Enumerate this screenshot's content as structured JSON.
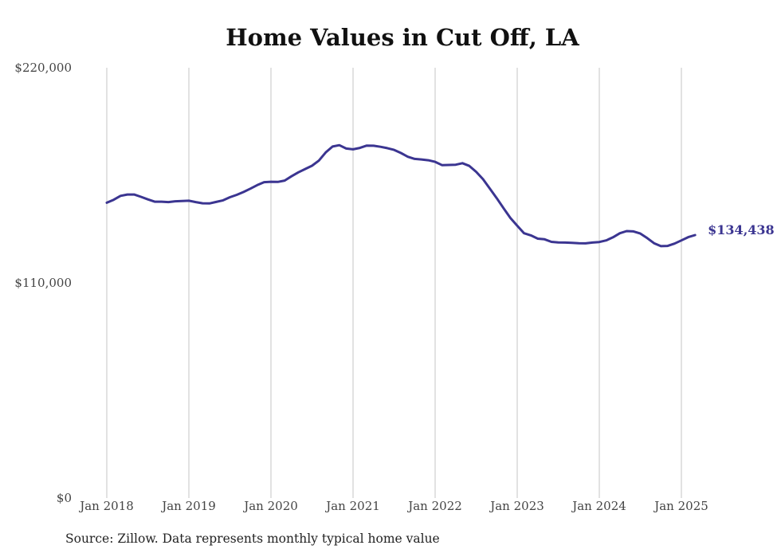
{
  "chart_data": {
    "type": "line",
    "title": "Home Values in Cut Off, LA",
    "xlabel": "",
    "ylabel": "",
    "x_ticks": [
      "Jan 2018",
      "Jan 2019",
      "Jan 2020",
      "Jan 2021",
      "Jan 2022",
      "Jan 2023",
      "Jan 2024",
      "Jan 2025"
    ],
    "y_ticks": [
      "$0",
      "$110,000",
      "$220,000"
    ],
    "ylim": [
      0,
      220000
    ],
    "xlim": [
      "2018-01",
      "2025-03"
    ],
    "grid": "vertical",
    "line_color": "#3b3591",
    "end_label": "$134,438",
    "series": [
      {
        "x": [
          "2018-01",
          "2018-02",
          "2018-03",
          "2018-04",
          "2018-05",
          "2018-06",
          "2018-07",
          "2018-08",
          "2018-09",
          "2018-10",
          "2018-11",
          "2018-12",
          "2019-01",
          "2019-02",
          "2019-03",
          "2019-04",
          "2019-05",
          "2019-06",
          "2019-07",
          "2019-08",
          "2019-09",
          "2019-10",
          "2019-11",
          "2019-12",
          "2020-01",
          "2020-02",
          "2020-03",
          "2020-04",
          "2020-05",
          "2020-06",
          "2020-07",
          "2020-08",
          "2020-09",
          "2020-10",
          "2020-11",
          "2020-12",
          "2021-01",
          "2021-02",
          "2021-03",
          "2021-04",
          "2021-05",
          "2021-06",
          "2021-07",
          "2021-08",
          "2021-09",
          "2021-10",
          "2021-11",
          "2021-12",
          "2022-01",
          "2022-02",
          "2022-03",
          "2022-04",
          "2022-05",
          "2022-06",
          "2022-07",
          "2022-08",
          "2022-09",
          "2022-10",
          "2022-11",
          "2022-12",
          "2023-01",
          "2023-02",
          "2023-03",
          "2023-04",
          "2023-05",
          "2023-06",
          "2023-07",
          "2023-08",
          "2023-09",
          "2023-10",
          "2023-11",
          "2023-12",
          "2024-01",
          "2024-02",
          "2024-03",
          "2024-04",
          "2024-05",
          "2024-06",
          "2024-07",
          "2024-08",
          "2024-09",
          "2024-10",
          "2024-11",
          "2024-12",
          "2025-01",
          "2025-02",
          "2025-03"
        ],
        "values": [
          151000,
          152500,
          154500,
          155200,
          155200,
          154000,
          152700,
          151500,
          151500,
          151300,
          151700,
          151900,
          152000,
          151300,
          150700,
          150600,
          151400,
          152200,
          153800,
          155000,
          156500,
          158200,
          160000,
          161500,
          161700,
          161600,
          162300,
          164500,
          166500,
          168200,
          169900,
          172500,
          176700,
          179700,
          180400,
          178700,
          178300,
          179000,
          180200,
          180100,
          179600,
          178900,
          178000,
          176400,
          174500,
          173400,
          173100,
          172700,
          171900,
          170200,
          170300,
          170400,
          171200,
          169800,
          166800,
          163000,
          158200,
          153300,
          148200,
          143200,
          139200,
          135400,
          134300,
          132600,
          132300,
          131000,
          130700,
          130600,
          130500,
          130300,
          130200,
          130600,
          130900,
          131700,
          133300,
          135400,
          136500,
          136300,
          135200,
          132900,
          130300,
          128800,
          128900,
          130100,
          131700,
          133400,
          134438
        ]
      }
    ]
  },
  "source_note": "Source: Zillow. Data represents monthly typical home value"
}
